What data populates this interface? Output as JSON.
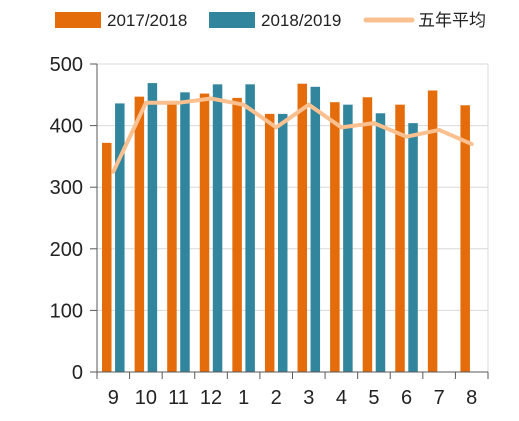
{
  "chart_data": {
    "type": "bar",
    "categories": [
      "9",
      "10",
      "11",
      "12",
      "1",
      "2",
      "3",
      "4",
      "5",
      "6",
      "7",
      "8"
    ],
    "series": [
      {
        "name": "2017/2018",
        "kind": "bar",
        "color": "#E46C0A",
        "values": [
          372,
          447,
          440,
          452,
          445,
          419,
          468,
          438,
          446,
          434,
          457,
          433
        ]
      },
      {
        "name": "2018/2019",
        "kind": "bar",
        "color": "#31859C",
        "values": [
          436,
          469,
          454,
          467,
          467,
          419,
          463,
          434,
          420,
          404,
          null,
          null
        ]
      },
      {
        "name": "五年平均",
        "kind": "line",
        "color": "#FAC090",
        "values": [
          325,
          437,
          437,
          444,
          434,
          397,
          434,
          397,
          404,
          382,
          393,
          370
        ]
      }
    ],
    "yticks": [
      "0",
      "100",
      "200",
      "300",
      "400",
      "500"
    ],
    "ylim": [
      0,
      500
    ],
    "grid": true,
    "legend": "top"
  }
}
